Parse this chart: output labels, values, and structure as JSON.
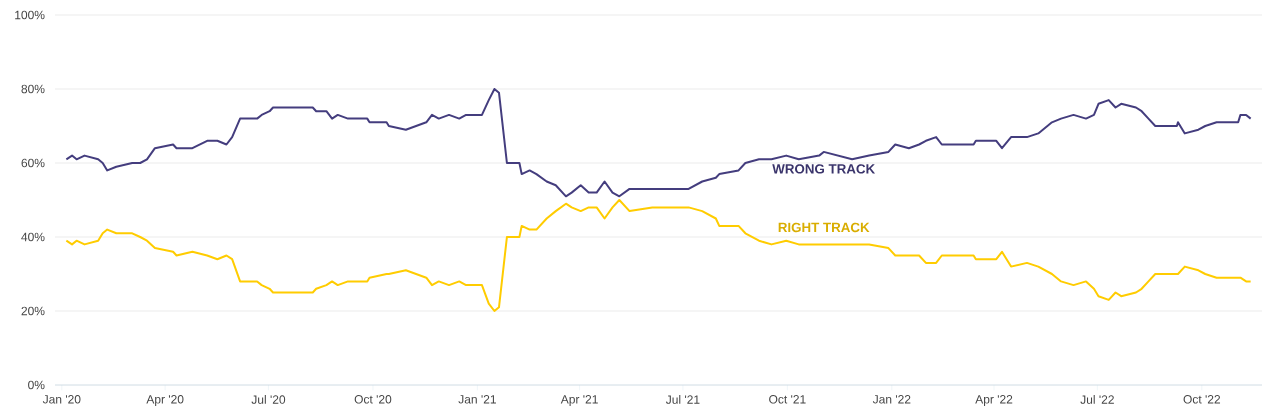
{
  "chart_data": {
    "type": "line",
    "x": [
      "2020-01-05",
      "2020-01-10",
      "2020-01-14",
      "2020-01-21",
      "2020-02-02",
      "2020-02-06",
      "2020-02-10",
      "2020-02-18",
      "2020-03-03",
      "2020-03-10",
      "2020-03-16",
      "2020-03-23",
      "2020-04-08",
      "2020-04-11",
      "2020-04-25",
      "2020-05-08",
      "2020-05-17",
      "2020-05-25",
      "2020-05-30",
      "2020-06-06",
      "2020-06-21",
      "2020-06-25",
      "2020-07-02",
      "2020-07-05",
      "2020-08-09",
      "2020-08-12",
      "2020-08-21",
      "2020-08-26",
      "2020-08-31",
      "2020-09-09",
      "2020-09-26",
      "2020-09-28",
      "2020-10-13",
      "2020-10-15",
      "2020-10-30",
      "2020-11-08",
      "2020-11-17",
      "2020-11-22",
      "2020-11-28",
      "2020-12-07",
      "2020-12-16",
      "2020-12-22",
      "2021-01-05",
      "2021-01-11",
      "2021-01-16",
      "2021-01-20",
      "2021-01-27",
      "2021-02-07",
      "2021-02-09",
      "2021-02-16",
      "2021-02-22",
      "2021-03-03",
      "2021-03-11",
      "2021-03-20",
      "2021-03-25",
      "2021-04-02",
      "2021-04-09",
      "2021-04-16",
      "2021-04-23",
      "2021-04-30",
      "2021-05-06",
      "2021-05-15",
      "2021-06-04",
      "2021-07-06",
      "2021-07-18",
      "2021-07-30",
      "2021-08-02",
      "2021-08-19",
      "2021-08-25",
      "2021-09-06",
      "2021-09-17",
      "2021-09-30",
      "2021-10-11",
      "2021-10-29",
      "2021-11-02",
      "2021-11-27",
      "2021-12-12",
      "2021-12-29",
      "2022-01-04",
      "2022-01-16",
      "2022-01-25",
      "2022-01-31",
      "2022-02-09",
      "2022-02-14",
      "2022-03-14",
      "2022-03-16",
      "2022-04-03",
      "2022-04-08",
      "2022-04-16",
      "2022-04-30",
      "2022-05-10",
      "2022-05-22",
      "2022-05-30",
      "2022-06-10",
      "2022-06-21",
      "2022-06-28",
      "2022-07-02",
      "2022-07-11",
      "2022-07-17",
      "2022-07-22",
      "2022-08-04",
      "2022-08-09",
      "2022-08-15",
      "2022-08-21",
      "2022-09-09",
      "2022-09-10",
      "2022-09-16",
      "2022-09-28",
      "2022-10-04",
      "2022-10-14",
      "2022-11-02",
      "2022-11-04",
      "2022-11-09",
      "2022-11-13"
    ],
    "series": [
      {
        "name": "WRONG TRACK",
        "color": "#443d7e",
        "values": [
          61,
          62,
          61,
          62,
          61,
          60,
          58,
          59,
          60,
          60,
          61,
          64,
          65,
          64,
          64,
          66,
          66,
          65,
          67,
          72,
          72,
          73,
          74,
          75,
          75,
          74,
          74,
          72,
          73,
          72,
          72,
          71,
          71,
          70,
          69,
          70,
          71,
          73,
          72,
          73,
          72,
          73,
          73,
          77,
          80,
          79,
          60,
          60,
          57,
          58,
          57,
          55,
          54,
          51,
          52,
          54,
          52,
          52,
          55,
          52,
          51,
          53,
          53,
          53,
          55,
          56,
          57,
          58,
          60,
          61,
          61,
          62,
          61,
          62,
          63,
          61,
          62,
          63,
          65,
          64,
          65,
          66,
          67,
          65,
          65,
          66,
          66,
          64,
          67,
          67,
          68,
          71,
          72,
          73,
          72,
          73,
          76,
          77,
          75,
          76,
          75,
          74,
          72,
          70,
          70,
          71,
          68,
          69,
          70,
          71,
          71,
          73,
          73,
          72
        ]
      },
      {
        "name": "RIGHT TRACK",
        "color": "#ffcc00",
        "values": [
          39,
          38,
          39,
          38,
          39,
          41,
          42,
          41,
          41,
          40,
          39,
          37,
          36,
          35,
          36,
          35,
          34,
          35,
          34,
          28,
          28,
          27,
          26,
          25,
          25,
          26,
          27,
          28,
          27,
          28,
          28,
          29,
          30,
          30,
          31,
          30,
          29,
          27,
          28,
          27,
          28,
          27,
          27,
          22,
          20,
          21,
          40,
          40,
          43,
          42,
          42,
          45,
          47,
          49,
          48,
          47,
          48,
          48,
          45,
          48,
          50,
          47,
          48,
          48,
          47,
          45,
          43,
          43,
          41,
          39,
          38,
          39,
          38,
          38,
          38,
          38,
          38,
          37,
          35,
          35,
          35,
          33,
          33,
          35,
          35,
          34,
          34,
          36,
          32,
          33,
          32,
          30,
          28,
          27,
          28,
          26,
          24,
          23,
          25,
          24,
          25,
          26,
          28,
          30,
          30,
          30,
          32,
          31,
          30,
          29,
          29,
          29,
          28,
          28
        ]
      }
    ],
    "xlim": [
      "2019-12-26",
      "2022-11-23"
    ],
    "xticks": [
      {
        "value": "2020-01-01",
        "label": "Jan '20"
      },
      {
        "value": "2020-04-01",
        "label": "Apr '20"
      },
      {
        "value": "2020-07-01",
        "label": "Jul '20"
      },
      {
        "value": "2020-10-01",
        "label": "Oct '20"
      },
      {
        "value": "2021-01-01",
        "label": "Jan '21"
      },
      {
        "value": "2021-04-01",
        "label": "Apr '21"
      },
      {
        "value": "2021-07-01",
        "label": "Jul '21"
      },
      {
        "value": "2021-10-01",
        "label": "Oct '21"
      },
      {
        "value": "2022-01-01",
        "label": "Jan '22"
      },
      {
        "value": "2022-04-01",
        "label": "Apr '22"
      },
      {
        "value": "2022-07-01",
        "label": "Jul '22"
      },
      {
        "value": "2022-10-01",
        "label": "Oct '22"
      }
    ],
    "ylim": [
      0,
      100
    ],
    "yticks": [
      {
        "value": 0,
        "label": "0%"
      },
      {
        "value": 20,
        "label": "20%"
      },
      {
        "value": 40,
        "label": "40%"
      },
      {
        "value": 60,
        "label": "60%"
      },
      {
        "value": 80,
        "label": "80%"
      },
      {
        "value": 100,
        "label": "100%"
      }
    ],
    "grid": "y",
    "line_style": "solid"
  }
}
